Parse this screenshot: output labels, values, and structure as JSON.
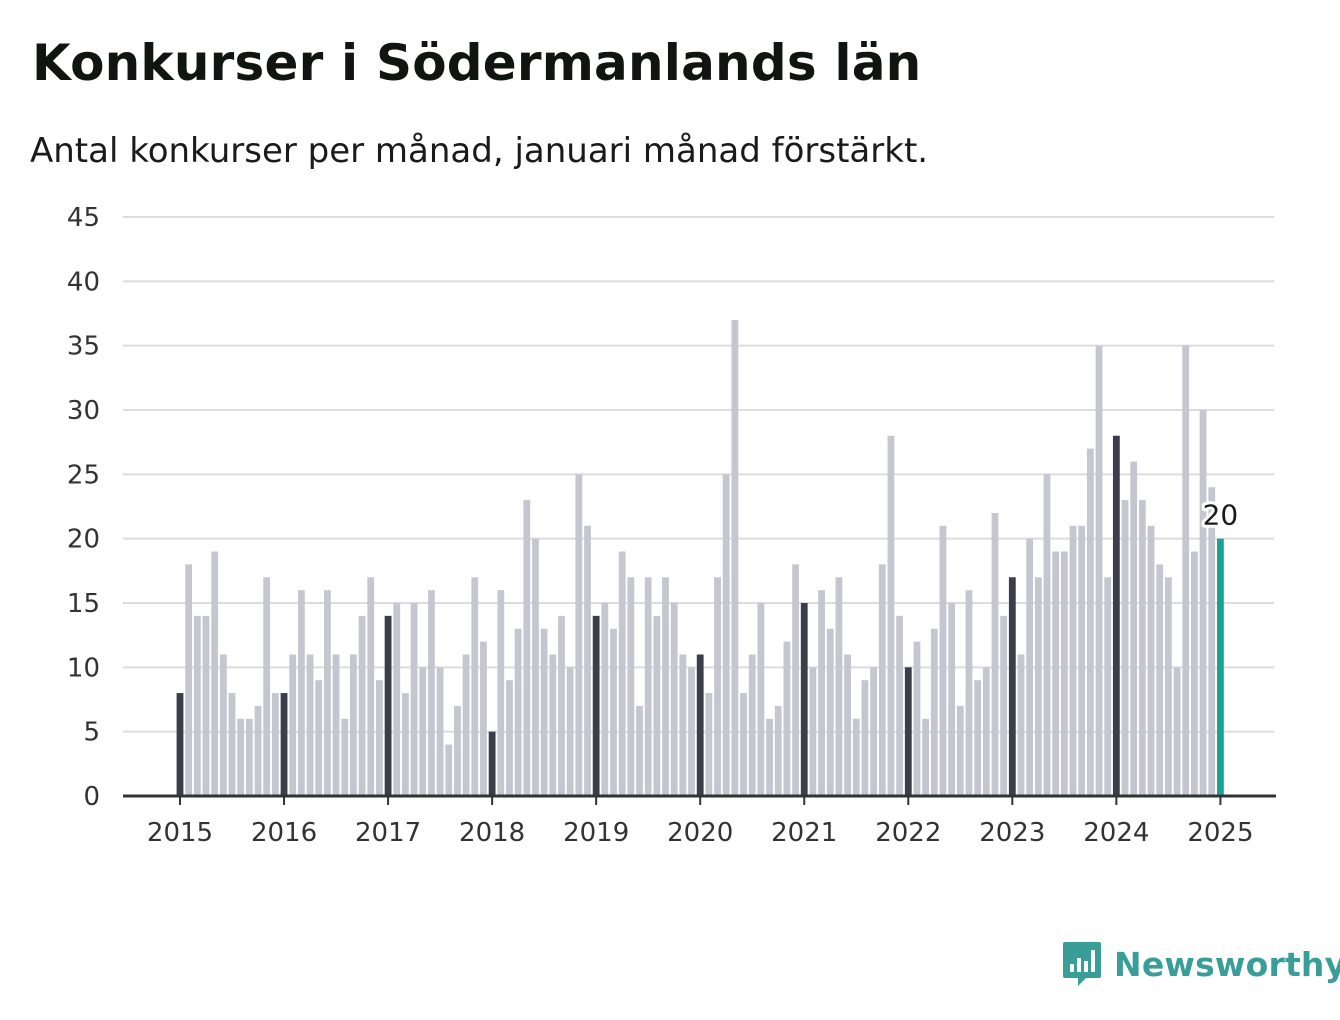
{
  "title": "Konkurser i Södermanlands län",
  "subtitle": "Antal konkurser per månad, januari månad förstärkt.",
  "brand": {
    "name": "Newsworthy",
    "icon": "newsworthy-logo-icon"
  },
  "colors": {
    "bar": "#c6c6d0",
    "january": "#3d3c4a",
    "latest": "#1aa394",
    "grid": "#dcdcdc",
    "axis": "#333333",
    "brand": "#3a9e98"
  },
  "chart_data": {
    "type": "bar",
    "title": "Konkurser i Södermanlands län",
    "subtitle": "Antal konkurser per månad, januari månad förstärkt.",
    "xlabel": "",
    "ylabel": "",
    "ylim": [
      0,
      45
    ],
    "yticks": [
      0,
      5,
      10,
      15,
      20,
      25,
      30,
      35,
      40,
      45
    ],
    "xtick_labels": [
      "2015",
      "2016",
      "2017",
      "2018",
      "2019",
      "2020",
      "2021",
      "2022",
      "2023",
      "2024",
      "2025"
    ],
    "grid": true,
    "start": "2015-01",
    "end": "2025-01",
    "highlight": "januari",
    "last_value_label": "20",
    "values": [
      8,
      18,
      14,
      14,
      19,
      11,
      8,
      6,
      6,
      7,
      17,
      8,
      8,
      11,
      16,
      11,
      9,
      16,
      11,
      6,
      11,
      14,
      17,
      9,
      14,
      15,
      8,
      15,
      10,
      16,
      10,
      4,
      7,
      11,
      17,
      12,
      5,
      16,
      9,
      13,
      23,
      20,
      13,
      11,
      14,
      10,
      25,
      21,
      14,
      15,
      13,
      19,
      17,
      7,
      17,
      14,
      17,
      15,
      11,
      10,
      11,
      8,
      17,
      25,
      37,
      8,
      11,
      15,
      6,
      7,
      12,
      18,
      15,
      10,
      16,
      13,
      17,
      11,
      6,
      9,
      10,
      18,
      28,
      14,
      10,
      12,
      6,
      13,
      21,
      15,
      7,
      16,
      9,
      10,
      22,
      14,
      17,
      11,
      20,
      17,
      25,
      19,
      19,
      21,
      21,
      27,
      35,
      17,
      28,
      23,
      26,
      23,
      21,
      18,
      17,
      10,
      35,
      19,
      30,
      24,
      20
    ]
  }
}
